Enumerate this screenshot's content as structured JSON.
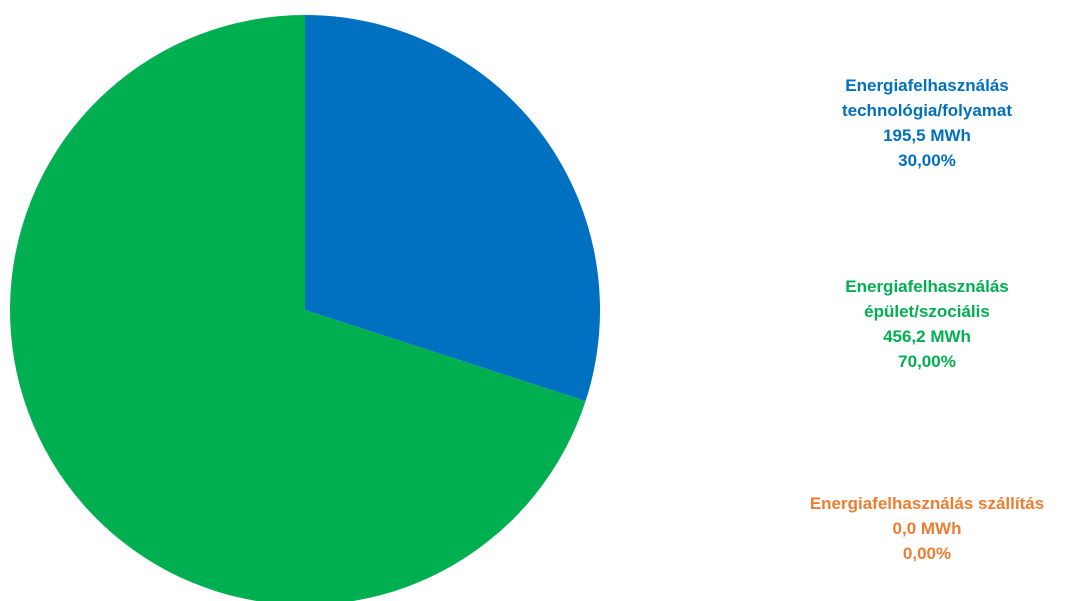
{
  "chart_data": {
    "type": "pie",
    "series": [
      {
        "name_lines": [
          "Energiafelhasználás",
          "technológia/folyamat"
        ],
        "value": 195.5,
        "value_label": "195,5 MWh",
        "percent": 30.0,
        "percent_label": "30,00%",
        "color": "#0070C0"
      },
      {
        "name_lines": [
          "Energiafelhasználás",
          "épület/szociális"
        ],
        "value": 456.2,
        "value_label": "456,2 MWh",
        "percent": 70.0,
        "percent_label": "70,00%",
        "color": "#00B050"
      },
      {
        "name_lines": [
          "Energiafelhasználás  szállítás"
        ],
        "value": 0.0,
        "value_label": "0,0 MWh",
        "percent": 0.0,
        "percent_label": "0,00%",
        "color": "#ED7D31"
      }
    ],
    "start_angle_deg": 0,
    "direction": "clockwise",
    "legend_position": "right"
  }
}
